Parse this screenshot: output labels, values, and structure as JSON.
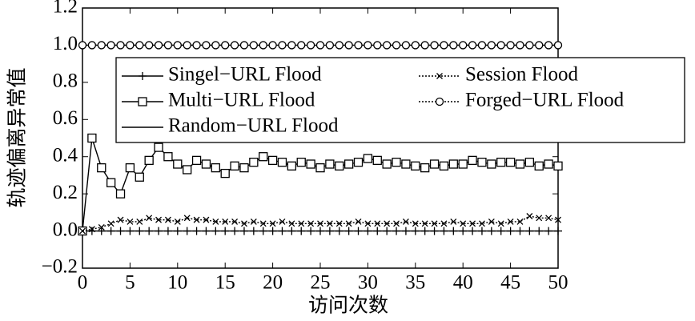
{
  "chart_data": {
    "type": "line",
    "xlabel": "访问次数",
    "ylabel": "轨迹偏离异常值",
    "x": [
      0,
      1,
      2,
      3,
      4,
      5,
      6,
      7,
      8,
      9,
      10,
      11,
      12,
      13,
      14,
      15,
      16,
      17,
      18,
      19,
      20,
      21,
      22,
      23,
      24,
      25,
      26,
      27,
      28,
      29,
      30,
      31,
      32,
      33,
      34,
      35,
      36,
      37,
      38,
      39,
      40,
      41,
      42,
      43,
      44,
      45,
      46,
      47,
      48,
      49,
      50
    ],
    "series": [
      {
        "name": "Singel−URL Flood",
        "color": "#000000",
        "marker": "plus",
        "dash": "solid",
        "values": [
          0,
          0,
          0,
          0,
          0,
          0,
          0,
          0,
          0,
          0,
          0,
          0,
          0,
          0,
          0,
          0,
          0,
          0,
          0,
          0,
          0,
          0,
          0,
          0,
          0,
          0,
          0,
          0,
          0,
          0,
          0,
          0,
          0,
          0,
          0,
          0,
          0,
          0,
          0,
          0,
          0,
          0,
          0,
          0,
          0,
          0,
          0,
          0,
          0,
          0,
          0
        ]
      },
      {
        "name": "Multi−URL Flood",
        "color": "#000000",
        "marker": "square",
        "dash": "solid",
        "values": [
          0,
          0.5,
          0.34,
          0.26,
          0.2,
          0.34,
          0.29,
          0.38,
          0.45,
          0.4,
          0.36,
          0.33,
          0.38,
          0.36,
          0.34,
          0.31,
          0.35,
          0.34,
          0.37,
          0.4,
          0.38,
          0.37,
          0.35,
          0.37,
          0.36,
          0.34,
          0.36,
          0.35,
          0.36,
          0.37,
          0.39,
          0.38,
          0.36,
          0.37,
          0.36,
          0.35,
          0.34,
          0.36,
          0.35,
          0.36,
          0.36,
          0.38,
          0.37,
          0.36,
          0.37,
          0.37,
          0.36,
          0.37,
          0.35,
          0.36,
          0.35
        ]
      },
      {
        "name": "Random−URL Flood",
        "color": "#000000",
        "marker": "none",
        "dash": "solid",
        "values": [
          1,
          1,
          1,
          1,
          1,
          1,
          1,
          1,
          1,
          1,
          1,
          1,
          1,
          1,
          1,
          1,
          1,
          1,
          1,
          1,
          1,
          1,
          1,
          1,
          1,
          1,
          1,
          1,
          1,
          1,
          1,
          1,
          1,
          1,
          1,
          1,
          1,
          1,
          1,
          1,
          1,
          1,
          1,
          1,
          1,
          1,
          1,
          1,
          1,
          1,
          1
        ]
      },
      {
        "name": "Session Flood",
        "color": "#000000",
        "marker": "cross",
        "dash": "dotted",
        "values": [
          0,
          0.01,
          0.02,
          0.04,
          0.06,
          0.05,
          0.05,
          0.07,
          0.06,
          0.06,
          0.05,
          0.07,
          0.06,
          0.06,
          0.05,
          0.05,
          0.05,
          0.04,
          0.05,
          0.04,
          0.04,
          0.05,
          0.04,
          0.04,
          0.04,
          0.04,
          0.04,
          0.04,
          0.04,
          0.05,
          0.04,
          0.04,
          0.04,
          0.04,
          0.05,
          0.04,
          0.04,
          0.04,
          0.04,
          0.05,
          0.04,
          0.04,
          0.04,
          0.05,
          0.04,
          0.05,
          0.05,
          0.08,
          0.07,
          0.07,
          0.06
        ]
      },
      {
        "name": "Forged−URL Flood",
        "color": "#000000",
        "marker": "circle",
        "dash": "dotted",
        "values": [
          1,
          1,
          1,
          1,
          1,
          1,
          1,
          1,
          1,
          1,
          1,
          1,
          1,
          1,
          1,
          1,
          1,
          1,
          1,
          1,
          1,
          1,
          1,
          1,
          1,
          1,
          1,
          1,
          1,
          1,
          1,
          1,
          1,
          1,
          1,
          1,
          1,
          1,
          1,
          1,
          1,
          1,
          1,
          1,
          1,
          1,
          1,
          1,
          1,
          1,
          1
        ]
      }
    ],
    "xlim": [
      0,
      50
    ],
    "xticks": [
      0,
      5,
      10,
      15,
      20,
      25,
      30,
      35,
      40,
      45,
      50
    ],
    "ylim": [
      -0.2,
      1.2
    ],
    "yticks": [
      {
        "value": -0.2,
        "label": "−0.2"
      },
      {
        "value": 0,
        "label": "0.0"
      },
      0.2,
      0.4,
      0.6,
      0.8,
      {
        "value": 1,
        "label": "1.0"
      },
      1.2
    ],
    "legend": "upper"
  }
}
